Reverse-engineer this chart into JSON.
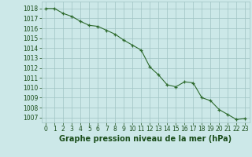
{
  "x": [
    0,
    1,
    2,
    3,
    4,
    5,
    6,
    7,
    8,
    9,
    10,
    11,
    12,
    13,
    14,
    15,
    16,
    17,
    18,
    19,
    20,
    21,
    22,
    23
  ],
  "y": [
    1018,
    1018,
    1017.5,
    1017.2,
    1016.7,
    1016.3,
    1016.2,
    1015.8,
    1015.4,
    1014.8,
    1014.3,
    1013.8,
    1012.1,
    1011.3,
    1010.3,
    1010.1,
    1010.6,
    1010.5,
    1009.0,
    1008.7,
    1007.8,
    1007.3,
    1006.8,
    1006.9
  ],
  "line_color": "#2d6a2d",
  "marker": "+",
  "bg_color": "#cce8e8",
  "grid_color": "#a0c4c4",
  "xlabel": "Graphe pression niveau de la mer (hPa)",
  "xlim": [
    -0.5,
    23.5
  ],
  "ylim": [
    1006.5,
    1018.7
  ],
  "yticks": [
    1007,
    1008,
    1009,
    1010,
    1011,
    1012,
    1013,
    1014,
    1015,
    1016,
    1017,
    1018
  ],
  "xticks": [
    0,
    1,
    2,
    3,
    4,
    5,
    6,
    7,
    8,
    9,
    10,
    11,
    12,
    13,
    14,
    15,
    16,
    17,
    18,
    19,
    20,
    21,
    22,
    23
  ],
  "xlabel_fontsize": 7,
  "tick_fontsize": 5.5,
  "xlabel_color": "#1a4d1a",
  "tick_color": "#1a4d1a",
  "label_fontweight": "bold"
}
